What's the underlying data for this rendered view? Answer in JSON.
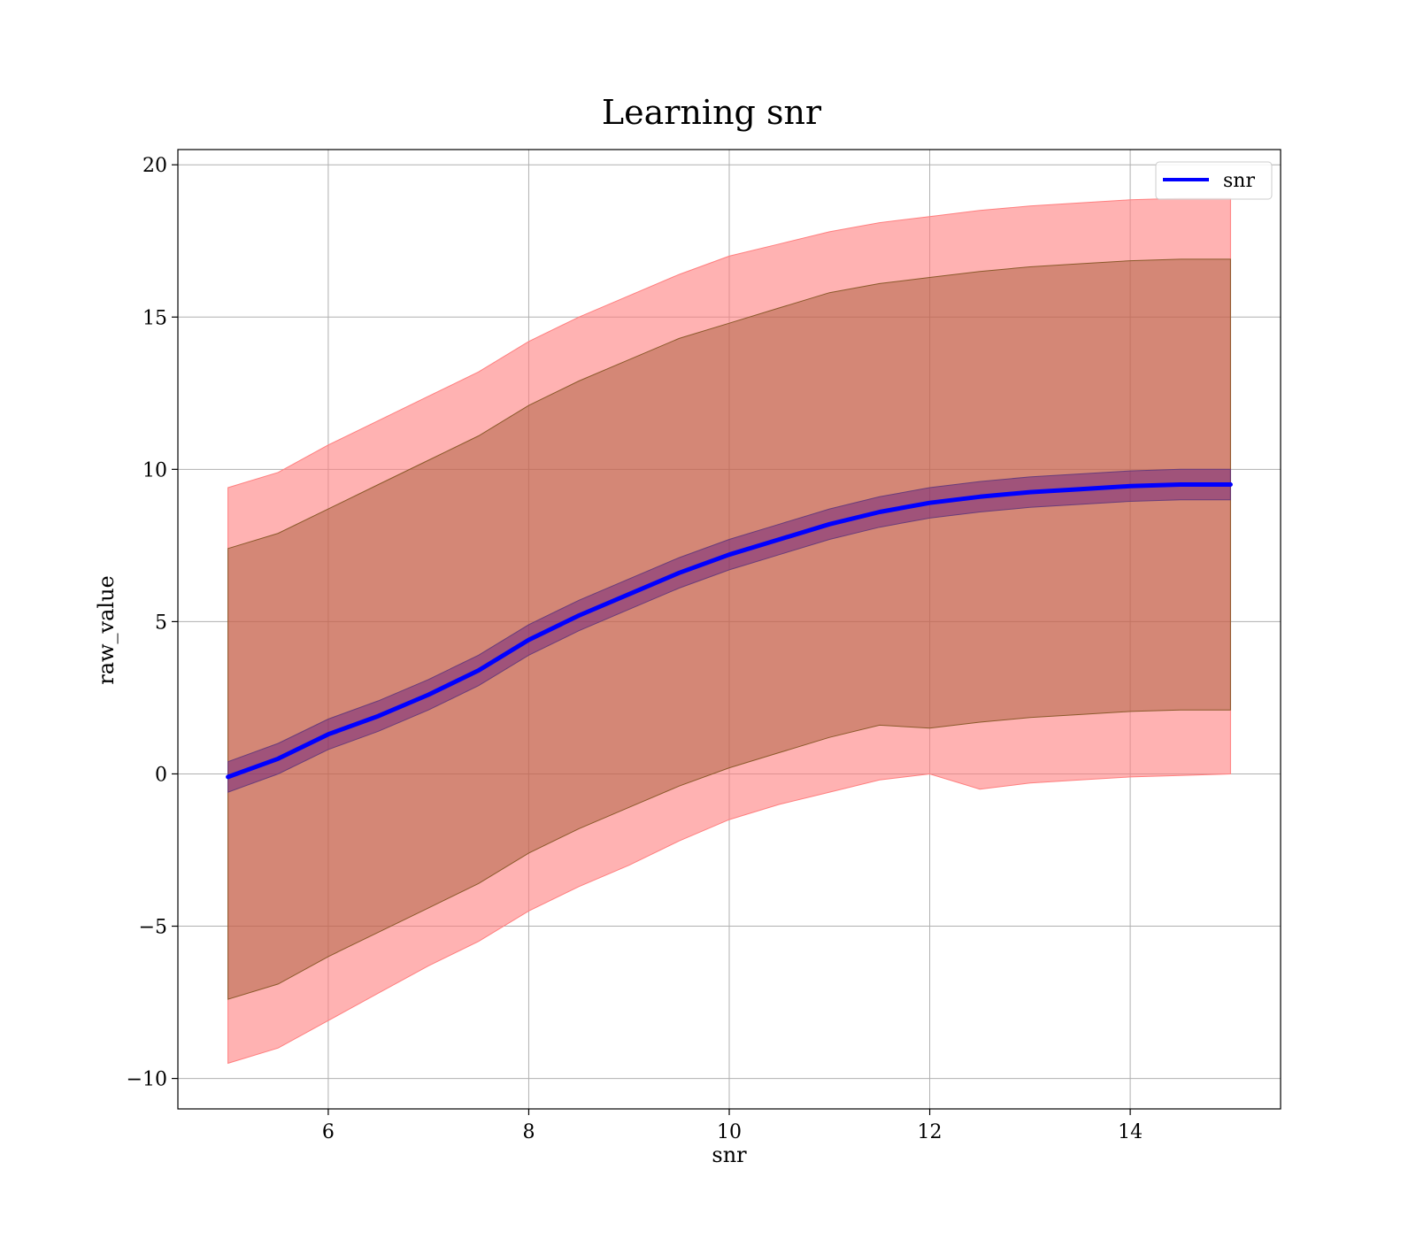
{
  "chart_data": {
    "type": "line",
    "title": "Learning snr",
    "xlabel": "snr",
    "ylabel": "raw_value",
    "xlim": [
      4.5,
      15.5
    ],
    "ylim": [
      -11,
      20.5
    ],
    "xticks": [
      6,
      8,
      10,
      12,
      14
    ],
    "yticks": [
      -10,
      -5,
      0,
      5,
      10,
      15,
      20
    ],
    "xtick_labels": [
      "6",
      "8",
      "10",
      "12",
      "14"
    ],
    "ytick_labels": [
      "−10",
      "−5",
      "0",
      "5",
      "10",
      "15",
      "20"
    ],
    "grid": true,
    "legend": {
      "position": "top-right",
      "entries": [
        "snr"
      ]
    },
    "x": [
      5,
      5.5,
      6,
      6.5,
      7,
      7.5,
      8,
      8.5,
      9,
      9.5,
      10,
      10.5,
      11,
      11.5,
      12,
      12.5,
      13,
      13.5,
      14,
      14.5,
      15
    ],
    "series": [
      {
        "name": "snr",
        "color": "#0000ff",
        "values": [
          -0.1,
          0.5,
          1.3,
          1.9,
          2.6,
          3.4,
          4.4,
          5.2,
          5.9,
          6.6,
          7.2,
          7.7,
          8.2,
          8.6,
          8.9,
          9.1,
          9.25,
          9.35,
          9.45,
          9.5,
          9.5
        ],
        "band_inner_lower": [
          -0.6,
          0.0,
          0.8,
          1.4,
          2.1,
          2.9,
          3.9,
          4.7,
          5.4,
          6.1,
          6.7,
          7.2,
          7.7,
          8.1,
          8.4,
          8.6,
          8.75,
          8.85,
          8.95,
          9.0,
          9.0
        ],
        "band_inner_upper": [
          0.4,
          1.0,
          1.8,
          2.4,
          3.1,
          3.9,
          4.9,
          5.7,
          6.4,
          7.1,
          7.7,
          8.2,
          8.7,
          9.1,
          9.4,
          9.6,
          9.75,
          9.85,
          9.95,
          10.0,
          10.0
        ],
        "band_mid_lower": [
          -7.4,
          -6.9,
          -6.0,
          -5.2,
          -4.4,
          -3.6,
          -2.6,
          -1.8,
          -1.1,
          -0.4,
          0.2,
          0.7,
          1.2,
          1.6,
          1.5,
          1.7,
          1.85,
          1.95,
          2.05,
          2.1,
          2.1
        ],
        "band_mid_upper": [
          7.4,
          7.9,
          8.7,
          9.5,
          10.3,
          11.1,
          12.1,
          12.9,
          13.6,
          14.3,
          14.8,
          15.3,
          15.8,
          16.1,
          16.3,
          16.5,
          16.65,
          16.75,
          16.85,
          16.9,
          16.9
        ],
        "band_outer_lower": [
          -9.5,
          -9.0,
          -8.1,
          -7.2,
          -6.3,
          -5.5,
          -4.5,
          -3.7,
          -3.0,
          -2.2,
          -1.5,
          -1.0,
          -0.6,
          -0.2,
          0.0,
          -0.5,
          -0.3,
          -0.2,
          -0.1,
          -0.05,
          0.0
        ],
        "band_outer_upper": [
          9.4,
          9.9,
          10.8,
          11.6,
          12.4,
          13.2,
          14.2,
          15.0,
          15.7,
          16.4,
          17.0,
          17.4,
          17.8,
          18.1,
          18.3,
          18.5,
          18.65,
          18.75,
          18.85,
          18.9,
          18.9
        ]
      }
    ],
    "colors": {
      "outer_band": "#ff7f7f",
      "mid_band": "#a0522d",
      "inner_band": "#4b0082",
      "line": "#0000ff"
    }
  }
}
